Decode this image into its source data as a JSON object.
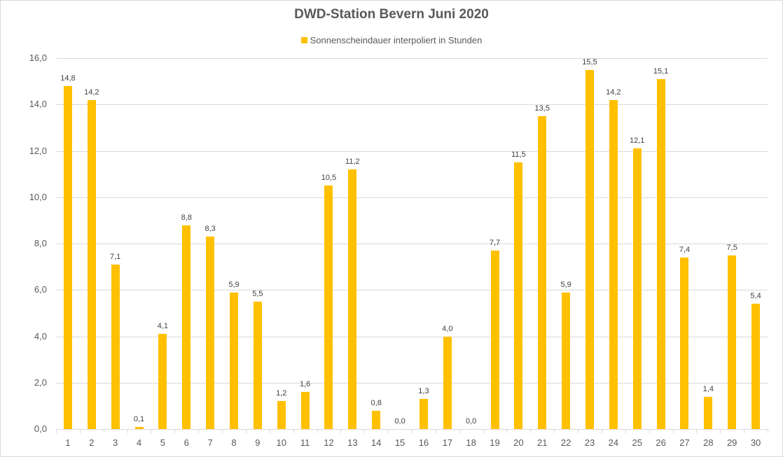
{
  "chart_data": {
    "type": "bar",
    "title": "DWD-Station  Bevern Juni 2020",
    "legend": [
      "Sonnenscheindauer interpoliert in Stunden"
    ],
    "legend_position": "top",
    "xlabel": "",
    "ylabel": "",
    "ylim": [
      0,
      16
    ],
    "yticks": [
      "0,0",
      "2,0",
      "4,0",
      "6,0",
      "8,0",
      "10,0",
      "12,0",
      "14,0",
      "16,0"
    ],
    "grid": true,
    "bar_color": "#ffc000",
    "categories": [
      "1",
      "2",
      "3",
      "4",
      "5",
      "6",
      "7",
      "8",
      "9",
      "10",
      "11",
      "12",
      "13",
      "14",
      "15",
      "16",
      "17",
      "18",
      "19",
      "20",
      "21",
      "22",
      "23",
      "24",
      "25",
      "26",
      "27",
      "28",
      "29",
      "30"
    ],
    "series": [
      {
        "name": "Sonnenscheindauer interpoliert in Stunden",
        "values": [
          14.8,
          14.2,
          7.1,
          0.1,
          4.1,
          8.8,
          8.3,
          5.9,
          5.5,
          1.2,
          1.6,
          10.5,
          11.2,
          0.8,
          0.0,
          1.3,
          4.0,
          0.0,
          7.7,
          11.5,
          13.5,
          5.9,
          15.5,
          14.2,
          12.1,
          15.1,
          7.4,
          1.4,
          7.5,
          5.4
        ],
        "labels": [
          "14,8",
          "14,2",
          "7,1",
          "0,1",
          "4,1",
          "8,8",
          "8,3",
          "5,9",
          "5,5",
          "1,2",
          "1,6",
          "10,5",
          "11,2",
          "0,8",
          "0,0",
          "1,3",
          "4,0",
          "0,0",
          "7,7",
          "11,5",
          "13,5",
          "5,9",
          "15,5",
          "14,2",
          "12,1",
          "15,1",
          "7,4",
          "1,4",
          "7,5",
          "5,4"
        ]
      }
    ]
  }
}
